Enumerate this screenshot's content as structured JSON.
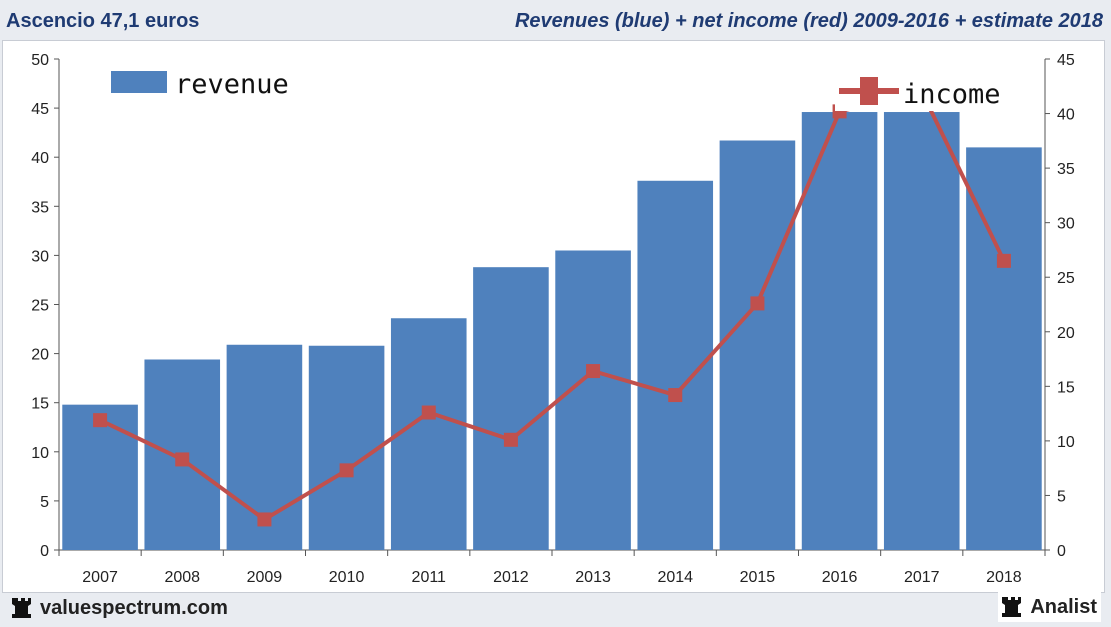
{
  "header": {
    "left_title": "Ascencio 47,1 euros",
    "right_title": "Revenues (blue) + net income (red) 2009-2016 + estimate 2018"
  },
  "footer": {
    "brand": "valuespectrum.com",
    "partner": "Analist"
  },
  "colors": {
    "revenue": "#4f81bd",
    "income": "#c0504d",
    "title": "#1f3b73"
  },
  "chart_data": {
    "type": "bar",
    "categories": [
      "2007",
      "2008",
      "2009",
      "2010",
      "2011",
      "2012",
      "2013",
      "2014",
      "2015",
      "2016",
      "2017",
      "2018"
    ],
    "series": [
      {
        "name": "revenue",
        "type": "bar",
        "axis": "left",
        "values": [
          14.8,
          19.4,
          20.9,
          20.8,
          23.6,
          28.8,
          30.5,
          37.6,
          41.7,
          44.6,
          44.6,
          41.0
        ]
      },
      {
        "name": "income",
        "type": "line",
        "axis": "right",
        "values": [
          11.9,
          8.3,
          2.8,
          7.3,
          12.6,
          10.1,
          16.4,
          14.2,
          22.6,
          40.2,
          42.0,
          26.5
        ]
      }
    ],
    "y_left": {
      "min": 0,
      "max": 50,
      "step": 5
    },
    "y_right": {
      "min": 0,
      "max": 45,
      "step": 5
    },
    "grid": false,
    "legend": {
      "revenue": "top-left",
      "income": "top-right"
    }
  }
}
